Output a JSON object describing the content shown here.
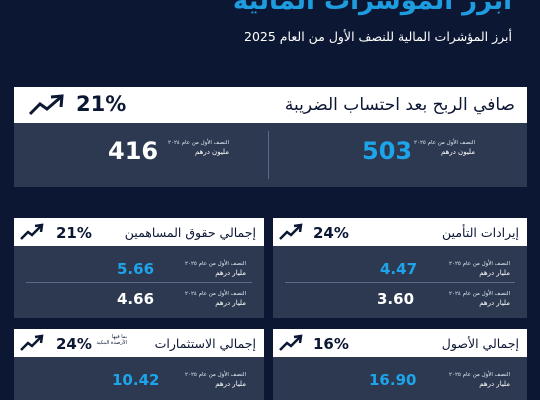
{
  "title": "أبرز المؤشرات المالية",
  "subtitle": "أبرز المؤشرات المالية للنصف الأول من العام 2025",
  "colors": {
    "background": "#0c1733",
    "card": "#2c3950",
    "accent_blue": "#1ea4ea",
    "header": "#ffffff",
    "title_blue": "#1e9ce0"
  },
  "net_profit": {
    "label": "صافي الربح بعد احتساب الضريبة",
    "change": "21%",
    "icon": "trend-up-icon",
    "current": {
      "value": "503",
      "period": "النصف الأول من عام ٢٠٢٥",
      "unit": "مليون درهم"
    },
    "previous": {
      "value": "416",
      "period": "النصف الأول من عام ٢٠٢٤",
      "unit": "مليون درهم"
    }
  },
  "equity": {
    "label": "إجمالي حقوق المساهمين",
    "change": "21%",
    "icon": "trend-up-icon",
    "current": {
      "value": "5.66",
      "period": "النصف الأول من عام ٢٠٢٥",
      "unit": "مليار درهم"
    },
    "previous": {
      "value": "4.66",
      "period": "النصف الأول من عام ٢٠٢٤",
      "unit": "مليار درهم"
    }
  },
  "insurance": {
    "label": "إيرادات التأمين",
    "change": "24%",
    "icon": "trend-up-icon",
    "current": {
      "value": "4.47",
      "period": "النصف الأول من عام ٢٠٢٥",
      "unit": "مليار درهم"
    },
    "previous": {
      "value": "3.60",
      "period": "النصف الأول من عام ٢٠٢٤",
      "unit": "مليار درهم"
    }
  },
  "investments": {
    "label": "إجمالي الاستثمارات",
    "note_line1": "بما فيها",
    "note_line2": "الأرصدة البنكية",
    "change": "24%",
    "icon": "trend-up-icon",
    "current": {
      "value": "10.42",
      "period": "النصف الأول من عام ٢٠٢٥",
      "unit": "مليار درهم"
    }
  },
  "assets": {
    "label": "إجمالي الأصول",
    "change": "16%",
    "icon": "trend-up-icon",
    "current": {
      "value": "16.90",
      "period": "النصف الأول من عام ٢٠٢٥",
      "unit": "مليار درهم"
    }
  }
}
